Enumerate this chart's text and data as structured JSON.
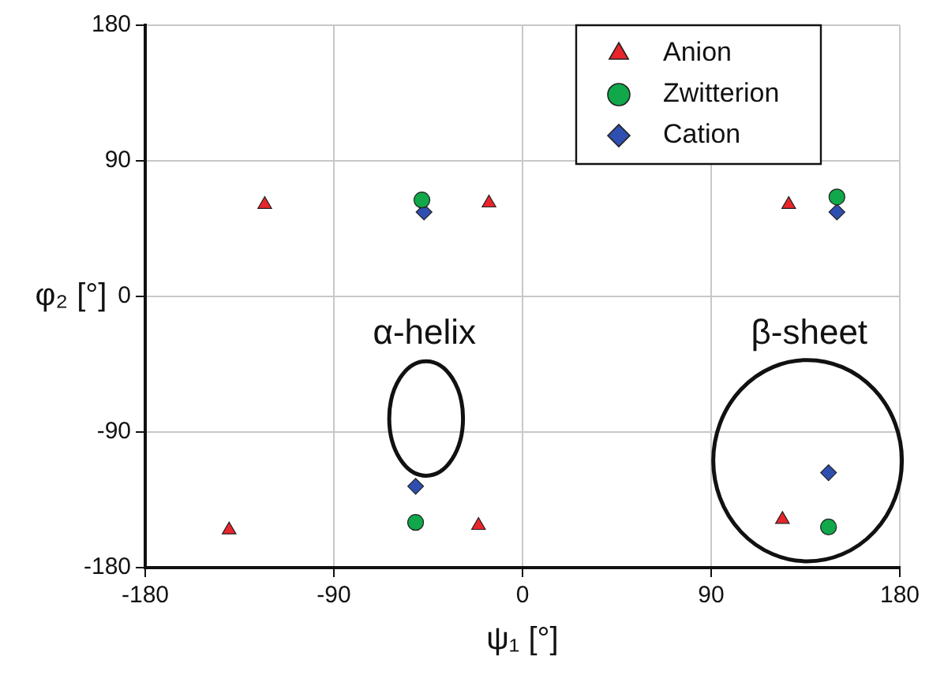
{
  "chart_data": {
    "type": "scatter",
    "xlabel": "ψ₁ [°]",
    "ylabel": "φ₂ [°]",
    "xlim": [
      -180,
      180
    ],
    "xticks": [
      -180,
      -90,
      0,
      90,
      180
    ],
    "ylim": [
      -180,
      180
    ],
    "yticks": [
      -180,
      -90,
      0,
      90,
      180
    ],
    "grid": true,
    "legend": "top right",
    "series": [
      {
        "name": "Anion",
        "color": "#e8252a",
        "marker": "triangle",
        "x": [
          -123,
          -16,
          127,
          -140,
          -21,
          124
        ],
        "values": [
          61,
          62,
          61,
          -155,
          -152,
          -148
        ]
      },
      {
        "name": "Zwitterion",
        "color": "#10a84a",
        "marker": "circle",
        "x": [
          -48,
          150,
          -51,
          146
        ],
        "values": [
          64,
          66,
          -150,
          -153
        ]
      },
      {
        "name": "Cation",
        "color": "#2f4fb0",
        "marker": "diamond",
        "x": [
          -47,
          150,
          -51,
          146
        ],
        "values": [
          56,
          56,
          -126,
          -117
        ]
      }
    ],
    "annotations": [
      "α-helix",
      "β-sheet"
    ]
  }
}
